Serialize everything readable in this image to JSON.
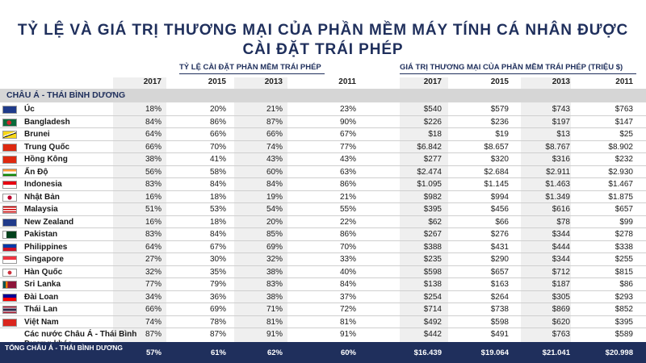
{
  "title_line1": "TỶ LỆ VÀ GIÁ TRỊ THƯƠNG MẠI CỦA PHẦN MỀM MÁY TÍNH CÁ NHÂN ĐƯỢC",
  "title_line2": "CÀI ĐẶT TRÁI PHÉP",
  "group_rate": "TỶ LỆ CÀI ĐẶT PHẦN MỀM TRÁI PHÉP",
  "group_value": "GIÁ TRỊ THƯƠNG MẠI CỦA PHẦN MỀM TRÁI PHÉP (TRIỆU $)",
  "years": [
    "2017",
    "2015",
    "2013",
    "2011",
    "2017",
    "2015",
    "2013",
    "2011"
  ],
  "region": "CHÂU Á - THÁI BÌNH DƯƠNG",
  "rows": [
    {
      "country": "Úc",
      "flag": "australia-flag-icon",
      "v": [
        "18%",
        "20%",
        "21%",
        "23%",
        "$540",
        "$579",
        "$743",
        "$763"
      ]
    },
    {
      "country": "Bangladesh",
      "flag": "bangladesh-flag-icon",
      "v": [
        "84%",
        "86%",
        "87%",
        "90%",
        "$226",
        "$236",
        "$197",
        "$147"
      ]
    },
    {
      "country": "Brunei",
      "flag": "brunei-flag-icon",
      "v": [
        "64%",
        "66%",
        "66%",
        "67%",
        "$18",
        "$19",
        "$13",
        "$25"
      ]
    },
    {
      "country": "Trung Quốc",
      "flag": "china-flag-icon",
      "v": [
        "66%",
        "70%",
        "74%",
        "77%",
        "$6.842",
        "$8.657",
        "$8.767",
        "$8.902"
      ]
    },
    {
      "country": "Hồng Kông",
      "flag": "hong-kong-flag-icon",
      "v": [
        "38%",
        "41%",
        "43%",
        "43%",
        "$277",
        "$320",
        "$316",
        "$232"
      ]
    },
    {
      "country": "Ấn Độ",
      "flag": "india-flag-icon",
      "v": [
        "56%",
        "58%",
        "60%",
        "63%",
        "$2.474",
        "$2.684",
        "$2.911",
        "$2.930"
      ]
    },
    {
      "country": "Indonesia",
      "flag": "indonesia-flag-icon",
      "v": [
        "83%",
        "84%",
        "84%",
        "86%",
        "$1.095",
        "$1.145",
        "$1.463",
        "$1.467"
      ]
    },
    {
      "country": "Nhật Bản",
      "flag": "japan-flag-icon",
      "v": [
        "16%",
        "18%",
        "19%",
        "21%",
        "$982",
        "$994",
        "$1.349",
        "$1.875"
      ]
    },
    {
      "country": "Malaysia",
      "flag": "malaysia-flag-icon",
      "v": [
        "51%",
        "53%",
        "54%",
        "55%",
        "$395",
        "$456",
        "$616",
        "$657"
      ]
    },
    {
      "country": "New Zealand",
      "flag": "new-zealand-flag-icon",
      "v": [
        "16%",
        "18%",
        "20%",
        "22%",
        "$62",
        "$66",
        "$78",
        "$99"
      ]
    },
    {
      "country": "Pakistan",
      "flag": "pakistan-flag-icon",
      "v": [
        "83%",
        "84%",
        "85%",
        "86%",
        "$267",
        "$276",
        "$344",
        "$278"
      ]
    },
    {
      "country": "Philippines",
      "flag": "philippines-flag-icon",
      "v": [
        "64%",
        "67%",
        "69%",
        "70%",
        "$388",
        "$431",
        "$444",
        "$338"
      ]
    },
    {
      "country": "Singapore",
      "flag": "singapore-flag-icon",
      "v": [
        "27%",
        "30%",
        "32%",
        "33%",
        "$235",
        "$290",
        "$344",
        "$255"
      ]
    },
    {
      "country": "Hàn Quốc",
      "flag": "south-korea-flag-icon",
      "v": [
        "32%",
        "35%",
        "38%",
        "40%",
        "$598",
        "$657",
        "$712",
        "$815"
      ]
    },
    {
      "country": "Sri Lanka",
      "flag": "sri-lanka-flag-icon",
      "v": [
        "77%",
        "79%",
        "83%",
        "84%",
        "$138",
        "$163",
        "$187",
        "$86"
      ]
    },
    {
      "country": "Đài Loan",
      "flag": "taiwan-flag-icon",
      "v": [
        "34%",
        "36%",
        "38%",
        "37%",
        "$254",
        "$264",
        "$305",
        "$293"
      ]
    },
    {
      "country": "Thái Lan",
      "flag": "thailand-flag-icon",
      "v": [
        "66%",
        "69%",
        "71%",
        "72%",
        "$714",
        "$738",
        "$869",
        "$852"
      ]
    },
    {
      "country": "Việt Nam",
      "flag": "vietnam-flag-icon",
      "v": [
        "74%",
        "78%",
        "81%",
        "81%",
        "$492",
        "$598",
        "$620",
        "$395"
      ]
    },
    {
      "country": "Các nước Châu Á - Thái Bình Dương khác",
      "flag": "",
      "v": [
        "87%",
        "87%",
        "91%",
        "91%",
        "$442",
        "$491",
        "$763",
        "$589"
      ]
    }
  ],
  "total": {
    "label": "TỔNG CHÂU Á - THÁI BÌNH DƯƠNG",
    "v": [
      "57%",
      "61%",
      "62%",
      "60%",
      "$16.439",
      "$19.064",
      "$21.041",
      "$20.998"
    ]
  }
}
